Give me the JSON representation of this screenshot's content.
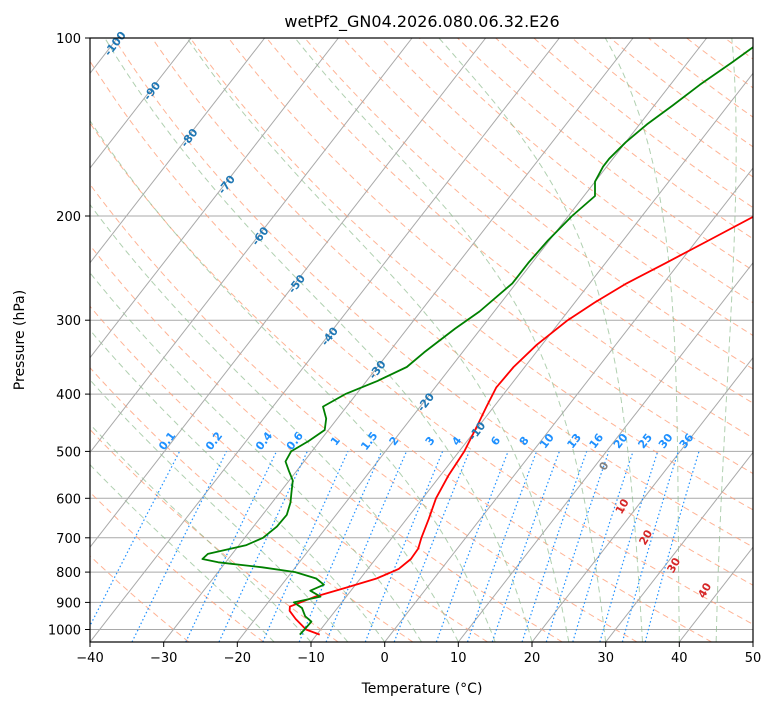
{
  "chart_data": {
    "type": "line",
    "subtype": "skew-t log-p",
    "title": "wetPf2_GN04.2026.080.06.32.E26",
    "xlabel": "Temperature (°C)",
    "ylabel": "Pressure (hPa)",
    "xlim": [
      -40,
      50
    ],
    "ylim": [
      1050,
      100
    ],
    "y_scale": "log",
    "grid": true,
    "x_ticks": [
      "−40",
      "−30",
      "−20",
      "−10",
      "0",
      "10",
      "20",
      "30",
      "40",
      "50"
    ],
    "y_ticks": [
      1000,
      900,
      800,
      700,
      600,
      500,
      400,
      300,
      200,
      100
    ],
    "y_tick_labels": [
      "1000",
      "900",
      "800",
      "700",
      "600",
      "500",
      "400",
      "300",
      "200",
      "100"
    ],
    "colors": {
      "temperature": "#ff0000",
      "dewpoint": "#008000",
      "isotherm": "#a9a9a9",
      "dry_adiabat": "#ffa07a",
      "moist_adiabat": "#8fbc8f",
      "mixing_ratio": "#1e90ff",
      "isotherm_label": "#1f77b4",
      "dry_adiabat_label": "#d62728",
      "zero_label": "#808080"
    },
    "series": [
      {
        "name": "Temperature",
        "points": [
          [
            1020,
            -9.6
          ],
          [
            1000,
            -12.0
          ],
          [
            960,
            -14.5
          ],
          [
            930,
            -16.2
          ],
          [
            915,
            -16.6
          ],
          [
            880,
            -14.2
          ],
          [
            850,
            -11.0
          ],
          [
            820,
            -7.8
          ],
          [
            790,
            -5.8
          ],
          [
            760,
            -5.2
          ],
          [
            730,
            -5.3
          ],
          [
            700,
            -6.0
          ],
          [
            650,
            -7.0
          ],
          [
            600,
            -8.2
          ],
          [
            550,
            -8.9
          ],
          [
            500,
            -9.3
          ],
          [
            450,
            -10.3
          ],
          [
            420,
            -11.0
          ],
          [
            390,
            -11.7
          ],
          [
            360,
            -11.5
          ],
          [
            330,
            -10.7
          ],
          [
            300,
            -9.1
          ],
          [
            280,
            -7.3
          ],
          [
            260,
            -5.0
          ],
          [
            240,
            -1.8
          ],
          [
            220,
            1.6
          ],
          [
            200,
            5.3
          ],
          [
            180,
            9.5
          ],
          [
            160,
            14.0
          ],
          [
            145,
            17.0
          ],
          [
            130,
            19.5
          ],
          [
            120,
            22.3
          ],
          [
            110,
            25.5
          ],
          [
            100,
            28.8
          ]
        ]
      },
      {
        "name": "Dewpoint",
        "points": [
          [
            1020,
            -12.3
          ],
          [
            1000,
            -12.2
          ],
          [
            970,
            -12.1
          ],
          [
            950,
            -13.5
          ],
          [
            920,
            -14.8
          ],
          [
            900,
            -16.5
          ],
          [
            880,
            -13.5
          ],
          [
            860,
            -15.5
          ],
          [
            840,
            -14.3
          ],
          [
            820,
            -16.0
          ],
          [
            800,
            -19.5
          ],
          [
            785,
            -24.5
          ],
          [
            770,
            -31.0
          ],
          [
            760,
            -33.5
          ],
          [
            745,
            -33.3
          ],
          [
            720,
            -29.0
          ],
          [
            700,
            -27.5
          ],
          [
            670,
            -26.8
          ],
          [
            640,
            -26.7
          ],
          [
            610,
            -27.5
          ],
          [
            590,
            -28.3
          ],
          [
            560,
            -29.5
          ],
          [
            540,
            -31.0
          ],
          [
            520,
            -32.5
          ],
          [
            500,
            -32.8
          ],
          [
            480,
            -31.5
          ],
          [
            460,
            -30.5
          ],
          [
            440,
            -31.5
          ],
          [
            420,
            -33.2
          ],
          [
            400,
            -31.5
          ],
          [
            380,
            -28.5
          ],
          [
            360,
            -26.0
          ],
          [
            340,
            -25.2
          ],
          [
            310,
            -23.5
          ],
          [
            290,
            -22.0
          ],
          [
            260,
            -20.5
          ],
          [
            240,
            -20.5
          ],
          [
            220,
            -20.2
          ],
          [
            200,
            -19.5
          ],
          [
            185,
            -18.5
          ],
          [
            175,
            -20.0
          ],
          [
            165,
            -20.5
          ],
          [
            160,
            -20.5
          ],
          [
            150,
            -20.0
          ],
          [
            140,
            -19.0
          ],
          [
            130,
            -17.5
          ],
          [
            120,
            -16.0
          ],
          [
            110,
            -14.0
          ],
          [
            100,
            -12.0
          ]
        ]
      }
    ],
    "isotherm_labels": [
      "-100",
      "-90",
      "-80",
      "-70",
      "-60",
      "-50",
      "-40",
      "-30",
      "-20",
      "-10"
    ],
    "dry_adiabat_labels": [
      "0",
      "10",
      "20",
      "30",
      "40"
    ],
    "mixing_ratio_labels": [
      "0.1",
      "0.2",
      "0.4",
      "0.6",
      "1",
      "1.5",
      "2",
      "3",
      "4",
      "6",
      "8",
      "10",
      "13",
      "16",
      "20",
      "25",
      "30",
      "36"
    ]
  }
}
